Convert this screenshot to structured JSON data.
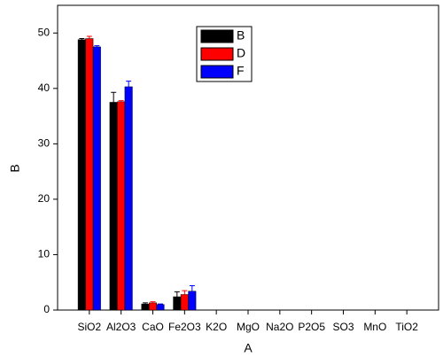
{
  "chart_data": {
    "type": "bar",
    "x_label": "A",
    "y_label": "B",
    "categories": [
      "SiO2",
      "Al2O3",
      "CaO",
      "Fe2O3",
      "K2O",
      "MgO",
      "Na2O",
      "P2O5",
      "SO3",
      "MnO",
      "TiO2"
    ],
    "series": [
      {
        "name": "B",
        "color": "#000000",
        "values": [
          48.8,
          37.5,
          1.1,
          2.4,
          null,
          null,
          null,
          null,
          null,
          null,
          null
        ],
        "errors": [
          0.2,
          1.8,
          0.2,
          0.9,
          null,
          null,
          null,
          null,
          null,
          null,
          null
        ]
      },
      {
        "name": "D",
        "color": "#ff0000",
        "values": [
          49.0,
          37.6,
          1.3,
          2.8,
          null,
          null,
          null,
          null,
          null,
          null,
          null
        ],
        "errors": [
          0.4,
          0.2,
          0.2,
          0.7,
          null,
          null,
          null,
          null,
          null,
          null,
          null
        ]
      },
      {
        "name": "F",
        "color": "#0000ff",
        "values": [
          47.5,
          40.3,
          1.0,
          3.4,
          null,
          null,
          null,
          null,
          null,
          null,
          null
        ],
        "errors": [
          0.2,
          1.0,
          0.1,
          1.0,
          null,
          null,
          null,
          null,
          null,
          null,
          null
        ]
      }
    ],
    "ylim": [
      0,
      55
    ],
    "yticks": [
      0,
      10,
      20,
      30,
      40,
      50
    ],
    "legend": "top-center"
  }
}
